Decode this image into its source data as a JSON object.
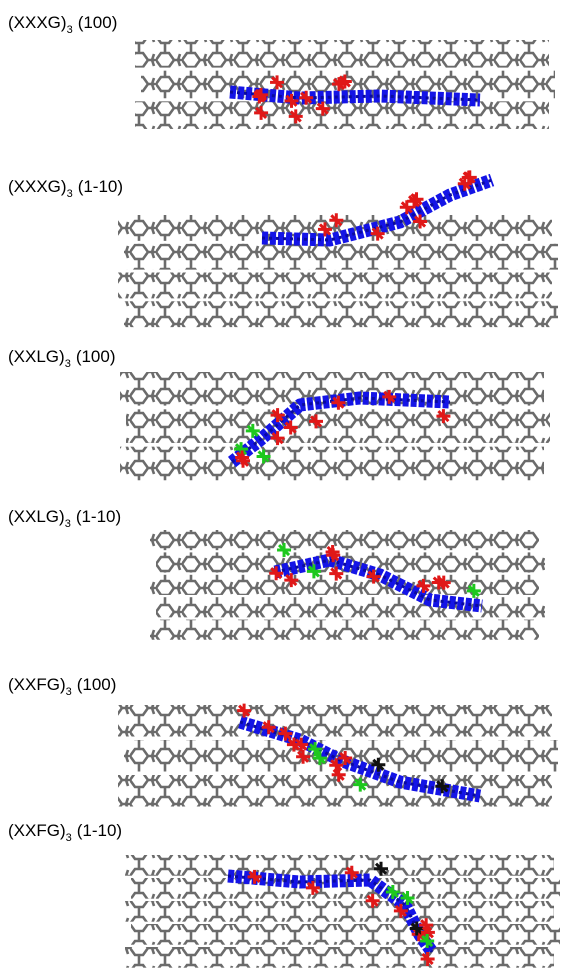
{
  "panels": [
    {
      "name": "(XXXG)",
      "subscript": "3",
      "facet": "(100)"
    },
    {
      "name": "(XXXG)",
      "subscript": "3",
      "facet": "(1-10)"
    },
    {
      "name": "(XXLG)",
      "subscript": "3",
      "facet": "(100)"
    },
    {
      "name": "(XXLG)",
      "subscript": "3",
      "facet": "(1-10)"
    },
    {
      "name": "(XXFG)",
      "subscript": "3",
      "facet": "(100)"
    },
    {
      "name": "(XXFG)",
      "subscript": "3",
      "facet": "(1-10)"
    }
  ]
}
